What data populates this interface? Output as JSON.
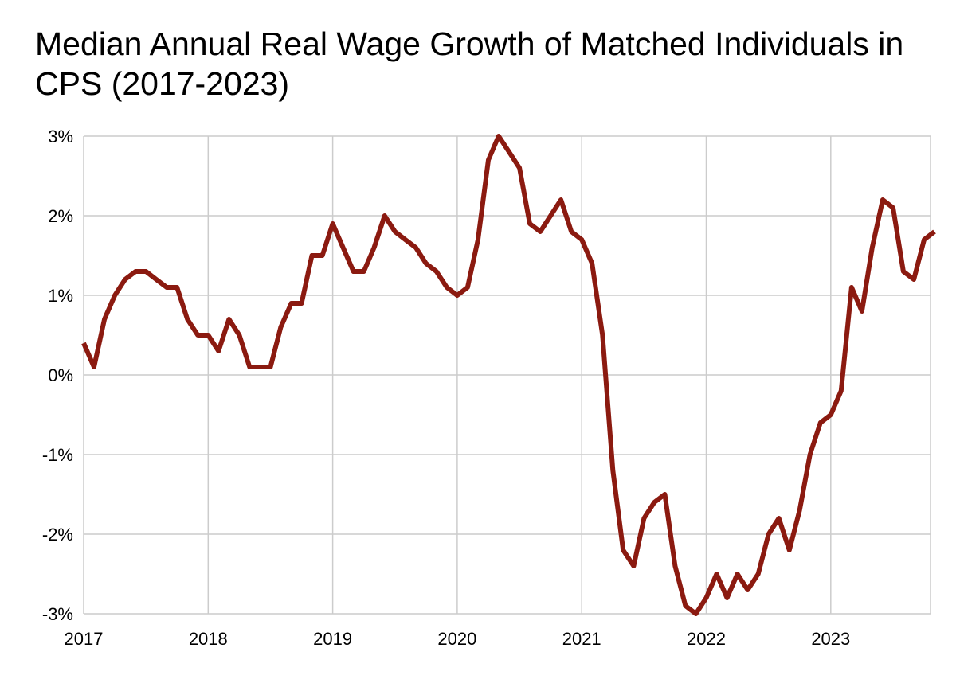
{
  "chart_data": {
    "type": "line",
    "title": "Median Annual Real Wage Growth of Matched Individuals in CPS (2017-2023)",
    "xlabel": "",
    "ylabel": "",
    "x_ticks": [
      "2017",
      "2018",
      "2019",
      "2020",
      "2021",
      "2022",
      "2023"
    ],
    "y_ticks": [
      "3%",
      "2%",
      "1%",
      "0%",
      "-1%",
      "-2%",
      "-3%"
    ],
    "ylim": [
      -3,
      3
    ],
    "xlim": [
      2017.0,
      2023.833
    ],
    "grid": true,
    "legend": "none",
    "series": [
      {
        "color": "#8b1a10",
        "x": [
          2017.0,
          2017.083,
          2017.167,
          2017.25,
          2017.333,
          2017.417,
          2017.5,
          2017.583,
          2017.667,
          2017.75,
          2017.833,
          2017.917,
          2018.0,
          2018.083,
          2018.167,
          2018.25,
          2018.333,
          2018.417,
          2018.5,
          2018.583,
          2018.667,
          2018.75,
          2018.833,
          2018.917,
          2019.0,
          2019.083,
          2019.167,
          2019.25,
          2019.333,
          2019.417,
          2019.5,
          2019.583,
          2019.667,
          2019.75,
          2019.833,
          2019.917,
          2020.0,
          2020.083,
          2020.167,
          2020.25,
          2020.333,
          2020.417,
          2020.5,
          2020.583,
          2020.667,
          2020.75,
          2020.833,
          2020.917,
          2021.0,
          2021.083,
          2021.167,
          2021.25,
          2021.333,
          2021.417,
          2021.5,
          2021.583,
          2021.667,
          2021.75,
          2021.833,
          2021.917,
          2022.0,
          2022.083,
          2022.167,
          2022.25,
          2022.333,
          2022.417,
          2022.5,
          2022.583,
          2022.667,
          2022.75,
          2022.833,
          2022.917,
          2023.0,
          2023.083,
          2023.167,
          2023.25,
          2023.333,
          2023.417,
          2023.5,
          2023.583,
          2023.667,
          2023.75,
          2023.833
        ],
        "y": [
          0.4,
          0.1,
          0.7,
          1.0,
          1.2,
          1.3,
          1.3,
          1.2,
          1.1,
          1.1,
          0.7,
          0.5,
          0.5,
          0.3,
          0.7,
          0.5,
          0.1,
          0.1,
          0.1,
          0.6,
          0.9,
          0.9,
          1.5,
          1.5,
          1.9,
          1.6,
          1.3,
          1.3,
          1.6,
          2.0,
          1.8,
          1.7,
          1.6,
          1.4,
          1.3,
          1.1,
          1.0,
          1.1,
          1.7,
          2.7,
          3.0,
          2.8,
          2.6,
          1.9,
          1.8,
          2.0,
          2.2,
          1.8,
          1.7,
          1.4,
          0.5,
          -1.2,
          -2.2,
          -2.4,
          -1.8,
          -1.6,
          -1.5,
          -2.4,
          -2.9,
          -3.0,
          -2.8,
          -2.5,
          -2.8,
          -2.5,
          -2.7,
          -2.5,
          -2.0,
          -1.8,
          -2.2,
          -1.7,
          -1.0,
          -0.6,
          -0.5,
          -0.2,
          1.1,
          0.8,
          1.6,
          2.2,
          2.1,
          1.3,
          1.2,
          1.7,
          1.8
        ]
      }
    ]
  }
}
